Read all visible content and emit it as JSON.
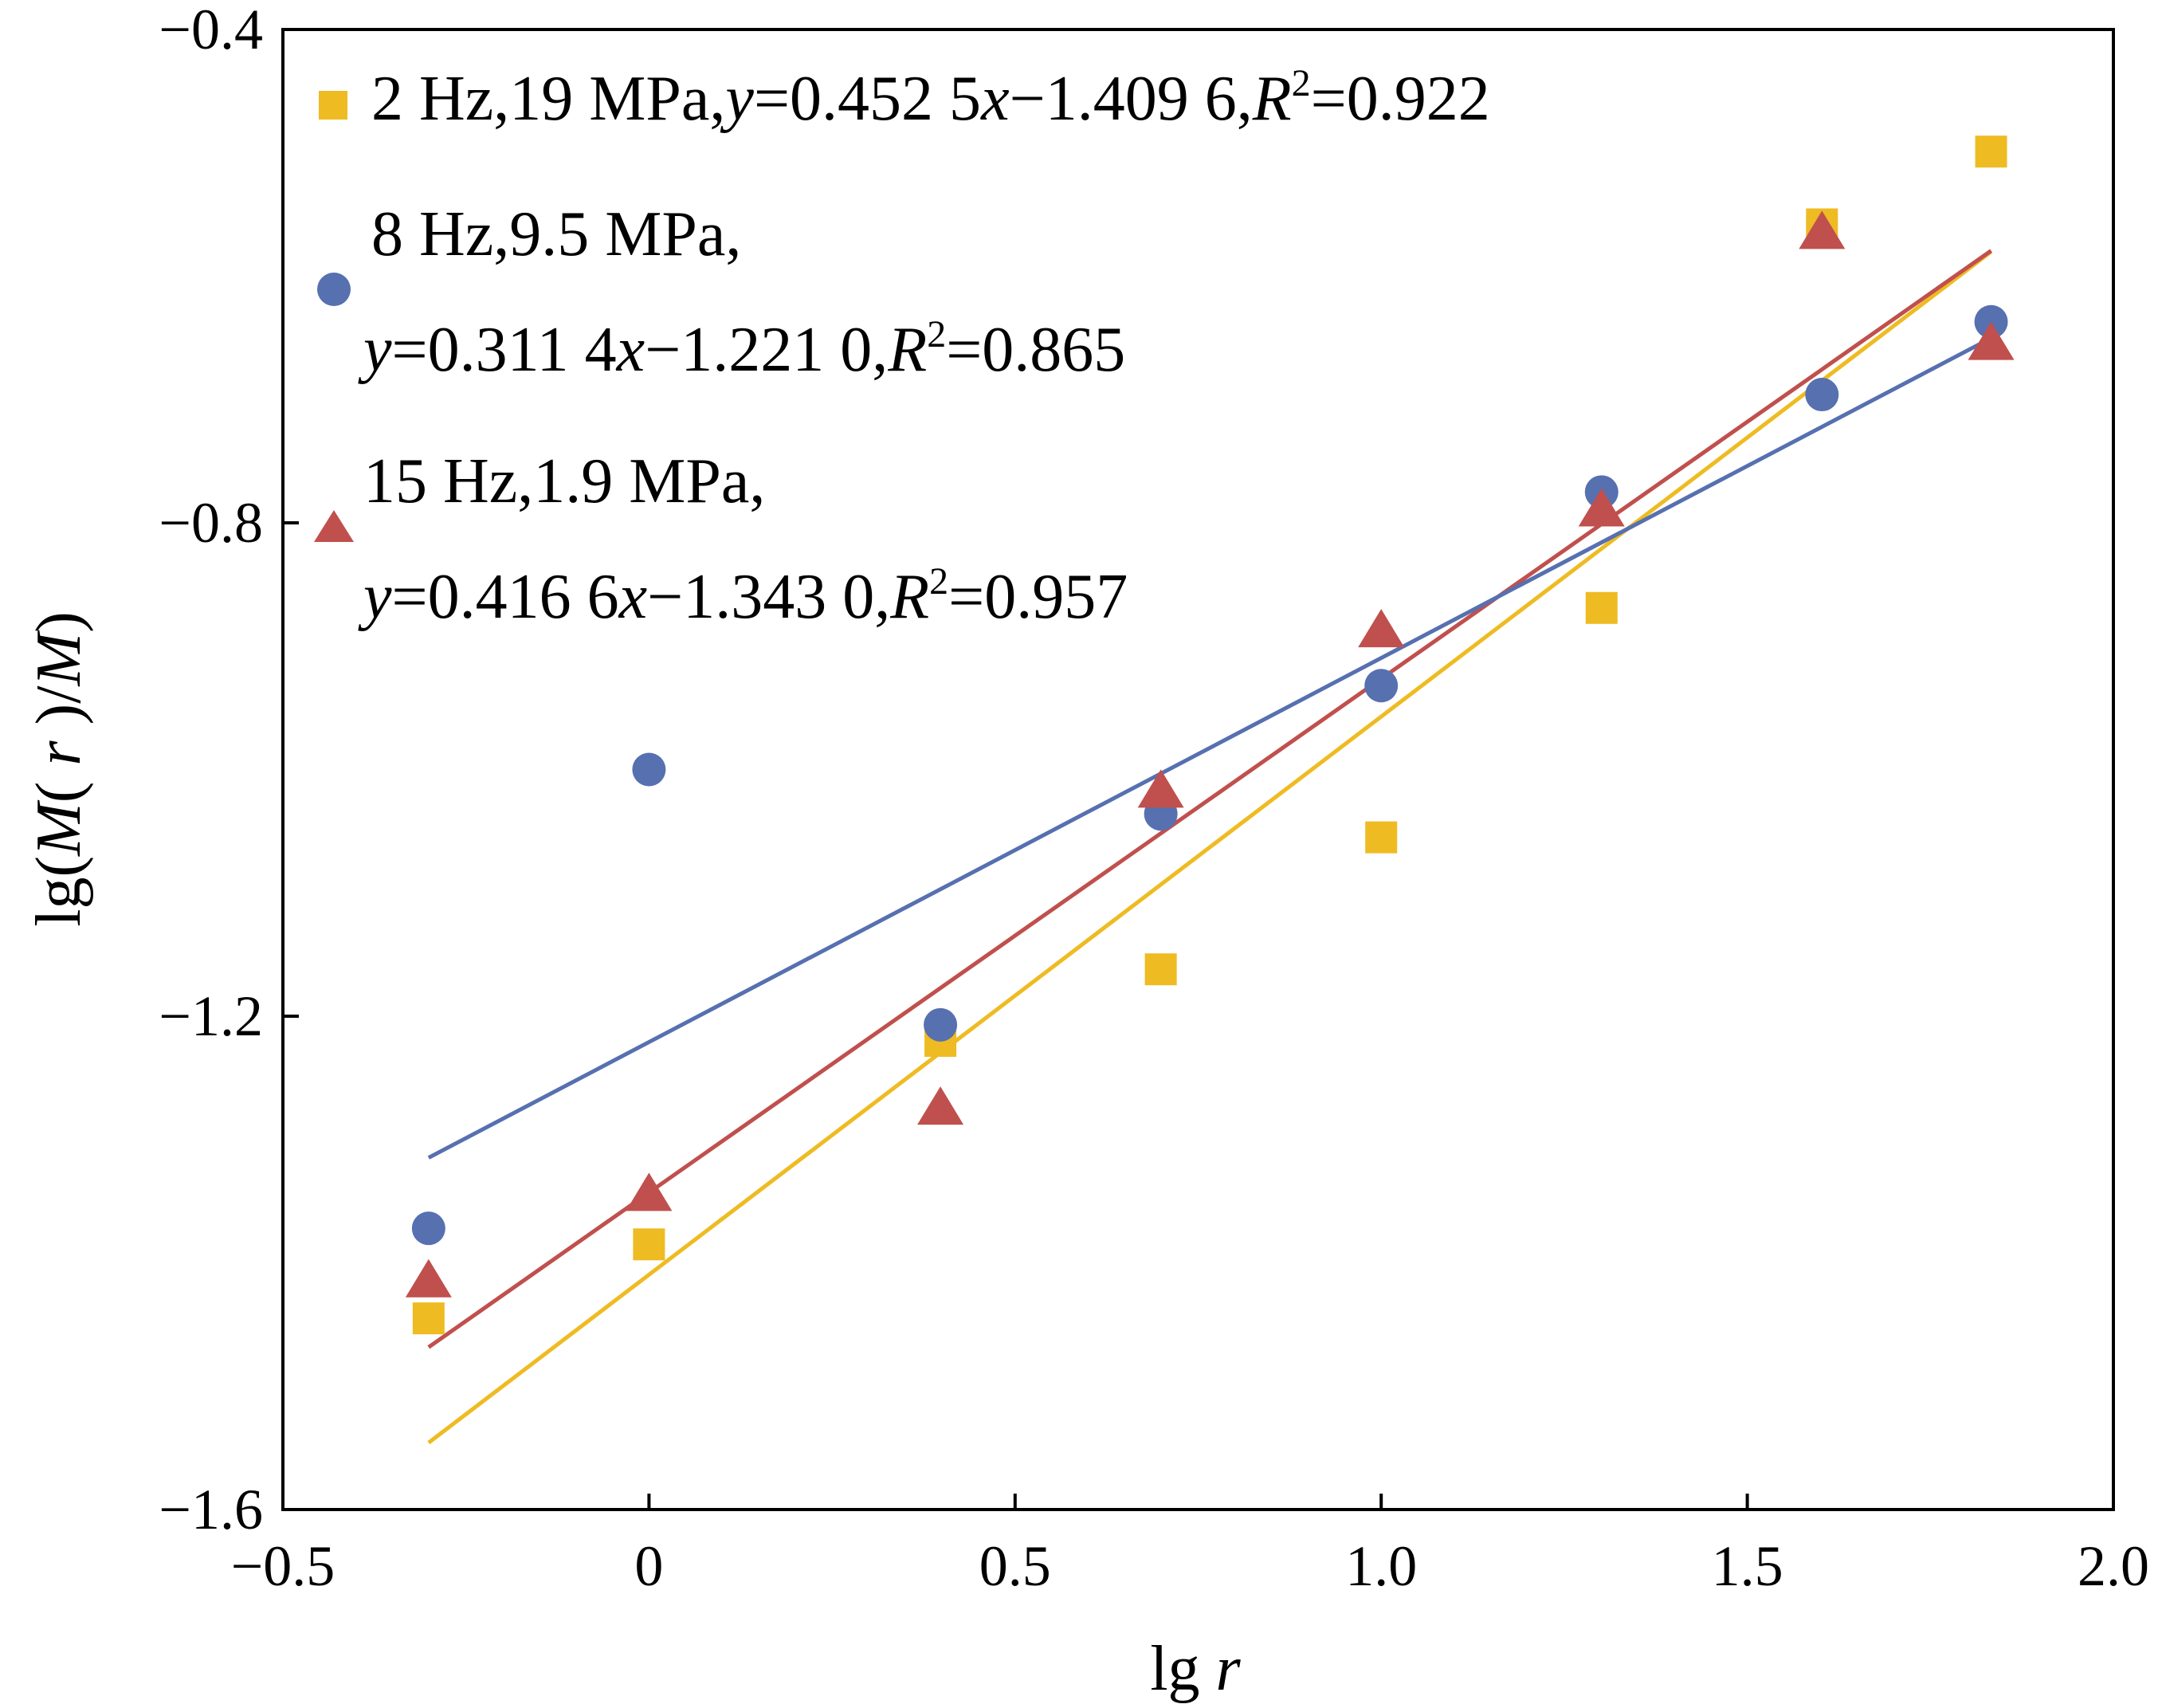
{
  "chart_data": {
    "type": "scatter",
    "xlabel": "lg r",
    "ylabel": "lg(M( r )/M)",
    "xlim": [
      -0.5,
      2.0
    ],
    "ylim": [
      -1.6,
      -0.4
    ],
    "x_ticks": [
      -0.5,
      0,
      0.5,
      1.0,
      1.5,
      2.0
    ],
    "x_tick_labels": [
      "−0.5",
      "0",
      "0.5",
      "1.0",
      "1.5",
      "2.0"
    ],
    "y_ticks": [
      -1.6,
      -1.2,
      -0.8,
      -0.4
    ],
    "y_tick_labels": [
      "−1.6",
      "−1.2",
      "−0.8",
      "−0.4"
    ],
    "grid": false,
    "legend_position": "top-left",
    "series": [
      {
        "name": "2 Hz,19 MPa",
        "marker": "square",
        "color": "#EEBB22",
        "x": [
          -0.301,
          0,
          0.398,
          0.699,
          1.0,
          1.301,
          1.602,
          1.833
        ],
        "y": [
          -1.445,
          -1.385,
          -1.22,
          -1.162,
          -1.055,
          -0.869,
          -0.558,
          -0.499
        ],
        "fit": {
          "slope": 0.4525,
          "intercept": -1.4096,
          "equation": "y=0.452 5x−1.409 6,",
          "r2": "R²=0.922"
        },
        "legend_line1": "2 Hz,19 MPa,",
        "legend_line2": "y=0.452 5x−1.409 6,R²=0.922"
      },
      {
        "name": "8 Hz,9.5 MPa",
        "marker": "circle",
        "color": "#5670B0",
        "x": [
          -0.301,
          0,
          0.398,
          0.699,
          1.0,
          1.301,
          1.602,
          1.833
        ],
        "y": [
          -1.372,
          -1.0,
          -1.207,
          -1.036,
          -0.932,
          -0.775,
          -0.696,
          -0.637
        ],
        "fit": {
          "slope": 0.3114,
          "intercept": -1.221,
          "equation": "y=0.311 4x−1.221 0,",
          "r2": "R²=0.865"
        },
        "legend_line1": "8 Hz,9.5 MPa,",
        "legend_line2": "y=0.311 4x−1.221 0,R²=0.865"
      },
      {
        "name": "15 Hz,1.9 MPa",
        "marker": "triangle",
        "color": "#C0504D",
        "x": [
          -0.301,
          0,
          0.398,
          0.699,
          1.0,
          1.301,
          1.602,
          1.833
        ],
        "y": [
          -1.415,
          -1.345,
          -1.275,
          -1.018,
          -0.888,
          -0.79,
          -0.565,
          -0.655
        ],
        "fit": {
          "slope": 0.4166,
          "intercept": -1.343,
          "equation": "y=0.416 6x−1.343 0,",
          "r2": "R²=0.957"
        },
        "legend_line1": "15 Hz,1.9 MPa,",
        "legend_line2": "y=0.416 6x−1.343 0,R²=0.957"
      }
    ]
  }
}
